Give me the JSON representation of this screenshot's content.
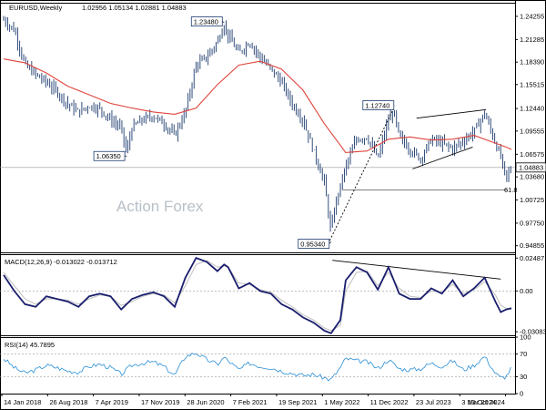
{
  "chart_data": {
    "type": "line",
    "title": "EURUSD,Weekly",
    "ohlc_header": "1.02956 1.05134 1.02881 1.04883",
    "watermark": "Action Forex",
    "x_labels": [
      "14 Jan 2018",
      "26 Aug 2018",
      "7 Apr 2019",
      "17 Nov 2019",
      "28 Jun 2020",
      "7 Feb 2021",
      "19 Sep 2021",
      "1 May 2022",
      "11 Dec 2022",
      "23 Jul 2023",
      "3 Mar 2024",
      "13 Oct 2024"
    ],
    "price_panel": {
      "ylim": [
        0.94,
        1.26
      ],
      "y_ticks": [
        "1.24255",
        "1.21285",
        "1.18390",
        "1.15515",
        "1.12440",
        "1.09555",
        "1.06575",
        "1.03680",
        "1.00725",
        "0.97750",
        "0.94855"
      ],
      "current_price": "1.04883",
      "callouts": [
        {
          "text": "1.23480",
          "x_week": 165,
          "y": 1.2348
        },
        {
          "text": "1.06350",
          "x_week": 92,
          "y": 1.0635
        },
        {
          "text": "0.95340",
          "x_week": 245,
          "y": 0.9534
        },
        {
          "text": "1.12740",
          "x_week": 292,
          "y": 1.1274
        }
      ],
      "trendlines": [
        {
          "x1_week": 244,
          "y1": 0.955,
          "x2_week": 292,
          "y2": 1.125,
          "style": "dotted",
          "color": "#000000"
        },
        {
          "x1_week": 309,
          "y1": 1.112,
          "x2_week": 361,
          "y2": 1.123,
          "style": "solid",
          "color": "#000000"
        },
        {
          "x1_week": 306,
          "y1": 1.047,
          "x2_week": 351,
          "y2": 1.075,
          "style": "solid",
          "color": "#000000"
        }
      ],
      "support_line": {
        "y": 1.02,
        "from_week": 254,
        "label": "61.8"
      },
      "reference_line": {
        "y": 1.05
      },
      "series": [
        {
          "name": "EURUSD",
          "color": "#1c3a6e",
          "style": "bars",
          "x_week": [
            0,
            8,
            16,
            24,
            32,
            40,
            48,
            56,
            64,
            72,
            80,
            88,
            92,
            96,
            104,
            112,
            120,
            128,
            136,
            144,
            152,
            160,
            165,
            168,
            176,
            184,
            192,
            200,
            208,
            216,
            224,
            232,
            240,
            245,
            248,
            256,
            264,
            272,
            280,
            288,
            292,
            296,
            304,
            312,
            320,
            328,
            336,
            344,
            352,
            360,
            368,
            372,
            376,
            380
          ],
          "close": [
            1.238,
            1.225,
            1.18,
            1.168,
            1.158,
            1.146,
            1.13,
            1.12,
            1.128,
            1.124,
            1.11,
            1.1,
            1.067,
            1.1,
            1.11,
            1.115,
            1.105,
            1.09,
            1.12,
            1.18,
            1.19,
            1.21,
            1.232,
            1.218,
            1.195,
            1.21,
            1.19,
            1.175,
            1.158,
            1.13,
            1.11,
            1.07,
            1.03,
            0.965,
            1.0,
            1.05,
            1.085,
            1.088,
            1.06,
            1.11,
            1.12,
            1.088,
            1.072,
            1.06,
            1.085,
            1.08,
            1.073,
            1.083,
            1.095,
            1.118,
            1.08,
            1.062,
            1.035,
            1.049
          ]
        },
        {
          "name": "MA",
          "color": "#e0443c",
          "style": "line",
          "x_week": [
            0,
            16,
            32,
            48,
            64,
            80,
            96,
            112,
            128,
            144,
            160,
            176,
            192,
            208,
            224,
            240,
            256,
            272,
            288,
            304,
            320,
            336,
            352,
            368,
            376,
            380
          ],
          "y": [
            1.188,
            1.183,
            1.17,
            1.153,
            1.142,
            1.131,
            1.125,
            1.12,
            1.117,
            1.125,
            1.155,
            1.18,
            1.185,
            1.175,
            1.148,
            1.105,
            1.068,
            1.07,
            1.085,
            1.088,
            1.084,
            1.085,
            1.09,
            1.08,
            1.075,
            1.072
          ]
        }
      ]
    },
    "macd_panel": {
      "label": "MACD(12,26,9) -0.013022 -0.013712",
      "ylim": [
        -0.0335,
        0.0278
      ],
      "y_ticks": [
        "0.024871",
        "0.00",
        "-0.030836"
      ],
      "trendline": {
        "x1_week": 246,
        "y1": 0.0232,
        "x2_week": 372,
        "y2": 0.009
      },
      "series": [
        {
          "name": "MACD",
          "color": "#1a1e6e",
          "x_week": [
            0,
            8,
            16,
            24,
            32,
            40,
            48,
            56,
            64,
            72,
            80,
            88,
            96,
            104,
            112,
            120,
            128,
            136,
            144,
            152,
            160,
            165,
            168,
            176,
            184,
            192,
            200,
            208,
            216,
            224,
            232,
            240,
            245,
            252,
            256,
            264,
            272,
            280,
            288,
            296,
            304,
            312,
            320,
            328,
            336,
            344,
            352,
            360,
            368,
            372,
            376,
            380
          ],
          "y": [
            0.012,
            0.0,
            -0.01,
            -0.012,
            -0.004,
            -0.006,
            -0.008,
            -0.012,
            -0.004,
            -0.002,
            -0.004,
            -0.014,
            -0.006,
            -0.003,
            -0.001,
            -0.004,
            -0.012,
            0.01,
            0.025,
            0.022,
            0.015,
            0.02,
            0.018,
            0.002,
            0.006,
            0.0,
            -0.002,
            -0.01,
            -0.014,
            -0.02,
            -0.024,
            -0.03,
            -0.032,
            -0.022,
            0.008,
            0.018,
            0.014,
            0.001,
            0.018,
            -0.002,
            -0.006,
            -0.006,
            0.002,
            -0.002,
            0.008,
            -0.004,
            0.002,
            0.01,
            -0.008,
            -0.016,
            -0.014,
            -0.013
          ]
        },
        {
          "name": "Signal",
          "color": "#c4c4c4",
          "x_week": [
            0,
            8,
            16,
            24,
            32,
            40,
            48,
            56,
            64,
            72,
            80,
            88,
            96,
            104,
            112,
            120,
            128,
            136,
            144,
            152,
            160,
            165,
            168,
            176,
            184,
            192,
            200,
            208,
            216,
            224,
            232,
            240,
            245,
            252,
            256,
            264,
            272,
            280,
            288,
            296,
            304,
            312,
            320,
            328,
            336,
            344,
            352,
            360,
            368,
            372,
            376,
            380
          ],
          "y": [
            0.014,
            0.004,
            -0.006,
            -0.01,
            -0.006,
            -0.006,
            -0.007,
            -0.01,
            -0.006,
            -0.003,
            -0.004,
            -0.011,
            -0.008,
            -0.004,
            -0.002,
            -0.003,
            -0.009,
            0.004,
            0.02,
            0.023,
            0.018,
            0.019,
            0.018,
            0.006,
            0.005,
            0.001,
            -0.001,
            -0.007,
            -0.012,
            -0.018,
            -0.022,
            -0.028,
            -0.03,
            -0.026,
            0.0,
            0.014,
            0.015,
            0.004,
            0.014,
            0.002,
            -0.004,
            -0.005,
            0.0,
            -0.001,
            0.005,
            -0.002,
            0.001,
            0.007,
            -0.003,
            -0.011,
            -0.013,
            -0.014
          ]
        }
      ]
    },
    "rsi_panel": {
      "label": "RSI(14) 45.7895",
      "ylim": [
        0,
        100
      ],
      "y_ticks": [
        "100",
        "70",
        "30",
        "0"
      ],
      "levels": [
        70,
        30
      ],
      "series": [
        {
          "name": "RSI",
          "color": "#2a8fd6",
          "x_week": [
            0,
            8,
            16,
            24,
            32,
            40,
            48,
            56,
            64,
            72,
            80,
            88,
            96,
            104,
            112,
            120,
            128,
            136,
            144,
            152,
            160,
            165,
            168,
            176,
            184,
            192,
            200,
            208,
            216,
            224,
            232,
            240,
            245,
            252,
            256,
            264,
            272,
            280,
            288,
            296,
            304,
            312,
            320,
            328,
            336,
            344,
            352,
            360,
            368,
            372,
            376,
            380
          ],
          "y": [
            62,
            46,
            36,
            42,
            50,
            46,
            40,
            38,
            48,
            52,
            46,
            34,
            50,
            54,
            56,
            48,
            32,
            66,
            72,
            60,
            52,
            64,
            58,
            42,
            54,
            48,
            46,
            40,
            36,
            32,
            34,
            28,
            24,
            46,
            62,
            58,
            56,
            44,
            60,
            44,
            42,
            44,
            54,
            48,
            58,
            42,
            50,
            66,
            36,
            28,
            30,
            46
          ]
        }
      ]
    }
  }
}
